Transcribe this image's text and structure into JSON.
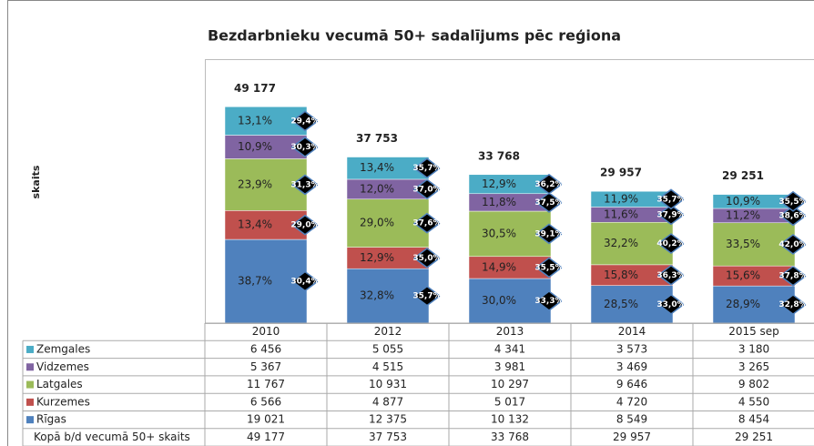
{
  "chart_data": {
    "type": "stacked_bar",
    "title": "Bezdarbnieku vecumā 50+ sadalījums pēc reģiona",
    "y_label": "skaits",
    "categories": [
      "2010",
      "2012",
      "2013",
      "2014",
      "2015 sep"
    ],
    "ylim": [
      0,
      60000
    ],
    "series": [
      {
        "name": "Rīgas",
        "color": "#4f81bd",
        "values": [
          19021,
          12375,
          10132,
          8549,
          8454
        ],
        "value_labels": [
          "19 021",
          "12 375",
          "10 132",
          "8 549",
          "8 454"
        ],
        "shares": [
          38.7,
          32.8,
          30.0,
          28.5,
          28.9
        ],
        "share_labels": [
          "38,7%",
          "32,8%",
          "30,0%",
          "28,5%",
          "28,9%"
        ],
        "ratios": [
          30.4,
          35.7,
          33.3,
          33.0,
          32.8
        ],
        "ratio_labels": [
          "30,4%",
          "35,7%",
          "33,3%",
          "33,0%",
          "32,8%"
        ]
      },
      {
        "name": "Kurzemes",
        "color": "#c0504d",
        "values": [
          6566,
          4877,
          5017,
          4720,
          4550
        ],
        "value_labels": [
          "6 566",
          "4 877",
          "5 017",
          "4 720",
          "4 550"
        ],
        "shares": [
          13.4,
          12.9,
          14.9,
          15.8,
          15.6
        ],
        "share_labels": [
          "13,4%",
          "12,9%",
          "14,9%",
          "15,8%",
          "15,6%"
        ],
        "ratios": [
          29.0,
          35.0,
          35.5,
          36.3,
          37.8
        ],
        "ratio_labels": [
          "29,0%",
          "35,0%",
          "35,5%",
          "36,3%",
          "37,8%"
        ]
      },
      {
        "name": "Latgales",
        "color": "#9bbb59",
        "values": [
          11767,
          10931,
          10297,
          9646,
          9802
        ],
        "value_labels": [
          "11 767",
          "10 931",
          "10 297",
          "9 646",
          "9 802"
        ],
        "shares": [
          23.9,
          29.0,
          30.5,
          32.2,
          33.5
        ],
        "share_labels": [
          "23,9%",
          "29,0%",
          "30,5%",
          "32,2%",
          "33,5%"
        ],
        "ratios": [
          31.3,
          37.6,
          39.1,
          40.2,
          42.0
        ],
        "ratio_labels": [
          "31,3%",
          "37,6%",
          "39,1%",
          "40,2%",
          "42,0%"
        ]
      },
      {
        "name": "Vidzemes",
        "color": "#8064a2",
        "values": [
          5367,
          4515,
          3981,
          3469,
          3265
        ],
        "value_labels": [
          "5 367",
          "4 515",
          "3 981",
          "3 469",
          "3 265"
        ],
        "shares": [
          10.9,
          12.0,
          11.8,
          11.6,
          11.2
        ],
        "share_labels": [
          "10,9%",
          "12,0%",
          "11,8%",
          "11,6%",
          "11,2%"
        ],
        "ratios": [
          30.3,
          37.0,
          37.5,
          37.9,
          38.6
        ],
        "ratio_labels": [
          "30,3%",
          "37,0%",
          "37,5%",
          "37,9%",
          "38,6%"
        ]
      },
      {
        "name": "Zemgales",
        "color": "#4bacc6",
        "values": [
          6456,
          5055,
          4341,
          3573,
          3180
        ],
        "value_labels": [
          "6 456",
          "5 055",
          "4 341",
          "3 573",
          "3 180"
        ],
        "shares": [
          13.1,
          13.4,
          12.9,
          11.9,
          10.9
        ],
        "share_labels": [
          "13,1%",
          "13,4%",
          "12,9%",
          "11,9%",
          "10,9%"
        ],
        "ratios": [
          29.4,
          35.7,
          36.2,
          35.7,
          35.5
        ],
        "ratio_labels": [
          "29,4%",
          "35,7%",
          "36,2%",
          "35,7%",
          "35,5%"
        ]
      }
    ],
    "total_row_label": "Kopā b/d vecumā 50+ skaits",
    "totals": [
      49177,
      37753,
      33768,
      29957,
      29251
    ],
    "total_labels": [
      "49 177",
      "37 753",
      "33 768",
      "29 957",
      "29 251"
    ]
  }
}
